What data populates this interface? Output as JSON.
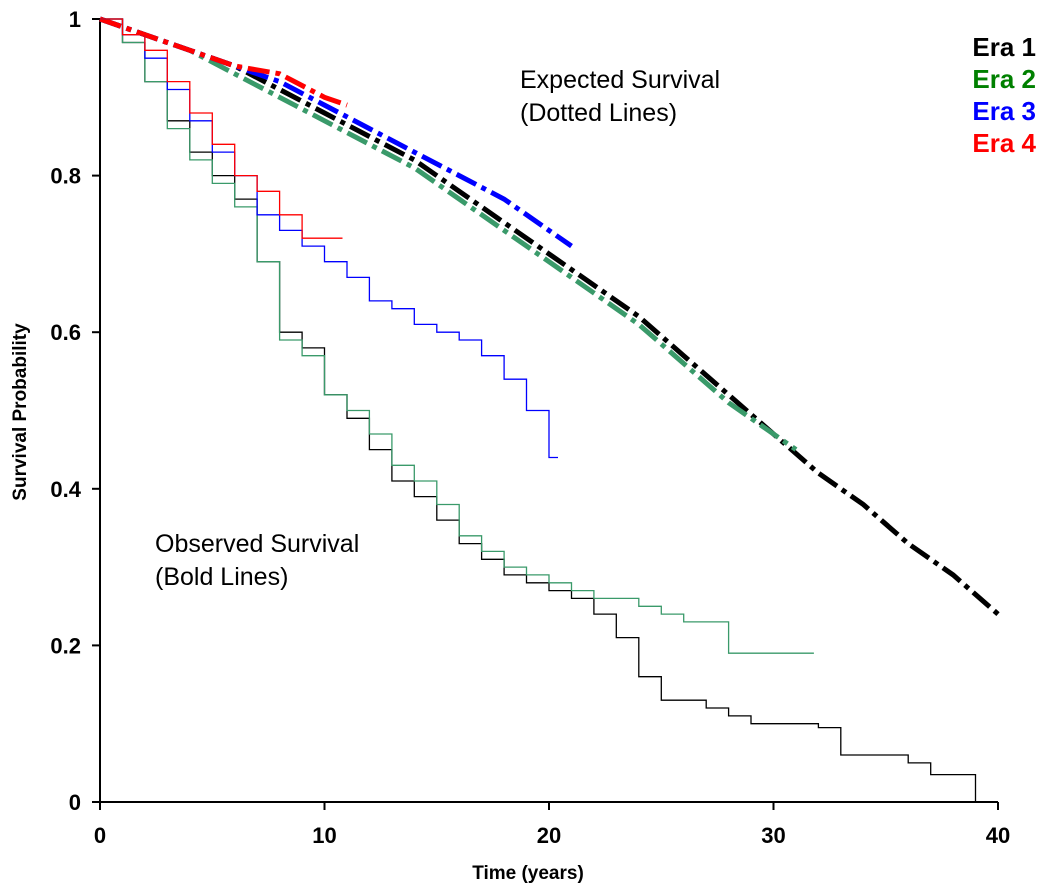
{
  "chart_data": {
    "type": "line",
    "title": "",
    "xlabel": "Time (years)",
    "ylabel": "Survival Probability",
    "xlim": [
      0,
      40
    ],
    "ylim": [
      0,
      1
    ],
    "x_ticks": [
      "0",
      "10",
      "20",
      "30",
      "40"
    ],
    "y_ticks": [
      "0",
      "0.2",
      "0.4",
      "0.6",
      "0.8",
      "1"
    ],
    "grid": false,
    "legend_position": "top-right",
    "annotations": [
      {
        "id": "expected",
        "lines": [
          "Expected Survival",
          "(Dotted Lines)"
        ]
      },
      {
        "id": "observed",
        "lines": [
          "Observed Survival",
          "(Bold Lines)"
        ]
      }
    ],
    "series": [
      {
        "name": "Era 1",
        "color": "#000000",
        "observed": [
          [
            0,
            1
          ],
          [
            1,
            0.97
          ],
          [
            2,
            0.92
          ],
          [
            3,
            0.87
          ],
          [
            4,
            0.83
          ],
          [
            5,
            0.8
          ],
          [
            6,
            0.77
          ],
          [
            7,
            0.69
          ],
          [
            8,
            0.6
          ],
          [
            9,
            0.58
          ],
          [
            10,
            0.52
          ],
          [
            11,
            0.49
          ],
          [
            12,
            0.45
          ],
          [
            13,
            0.41
          ],
          [
            14,
            0.39
          ],
          [
            15,
            0.36
          ],
          [
            16,
            0.33
          ],
          [
            17,
            0.31
          ],
          [
            18,
            0.29
          ],
          [
            19,
            0.28
          ],
          [
            20,
            0.27
          ],
          [
            21,
            0.26
          ],
          [
            22,
            0.24
          ],
          [
            23,
            0.21
          ],
          [
            24,
            0.16
          ],
          [
            25,
            0.13
          ],
          [
            26,
            0.13
          ],
          [
            27,
            0.12
          ],
          [
            28,
            0.11
          ],
          [
            29,
            0.1
          ],
          [
            30,
            0.1
          ],
          [
            31,
            0.1
          ],
          [
            32,
            0.095
          ],
          [
            33,
            0.06
          ],
          [
            34,
            0.06
          ],
          [
            35,
            0.06
          ],
          [
            36,
            0.05
          ],
          [
            37,
            0.035
          ],
          [
            38,
            0.035
          ],
          [
            39,
            0
          ]
        ],
        "expected": [
          [
            0,
            1
          ],
          [
            2,
            0.98
          ],
          [
            4,
            0.96
          ],
          [
            6,
            0.94
          ],
          [
            8,
            0.91
          ],
          [
            10,
            0.88
          ],
          [
            12,
            0.85
          ],
          [
            14,
            0.82
          ],
          [
            16,
            0.78
          ],
          [
            18,
            0.74
          ],
          [
            20,
            0.7
          ],
          [
            22,
            0.66
          ],
          [
            24,
            0.62
          ],
          [
            26,
            0.57
          ],
          [
            28,
            0.52
          ],
          [
            30,
            0.47
          ],
          [
            32,
            0.42
          ],
          [
            34,
            0.38
          ],
          [
            36,
            0.33
          ],
          [
            38,
            0.29
          ],
          [
            40,
            0.24
          ]
        ]
      },
      {
        "name": "Era 2",
        "color": "#008000",
        "line_color": "#3a9a6a",
        "observed": [
          [
            0,
            1
          ],
          [
            1,
            0.97
          ],
          [
            2,
            0.92
          ],
          [
            3,
            0.86
          ],
          [
            4,
            0.82
          ],
          [
            5,
            0.79
          ],
          [
            6,
            0.76
          ],
          [
            7,
            0.69
          ],
          [
            8,
            0.59
          ],
          [
            9,
            0.57
          ],
          [
            10,
            0.52
          ],
          [
            11,
            0.5
          ],
          [
            12,
            0.47
          ],
          [
            13,
            0.43
          ],
          [
            14,
            0.41
          ],
          [
            15,
            0.38
          ],
          [
            16,
            0.34
          ],
          [
            17,
            0.32
          ],
          [
            18,
            0.3
          ],
          [
            19,
            0.29
          ],
          [
            20,
            0.28
          ],
          [
            21,
            0.27
          ],
          [
            22,
            0.26
          ],
          [
            23,
            0.26
          ],
          [
            24,
            0.25
          ],
          [
            25,
            0.24
          ],
          [
            26,
            0.23
          ],
          [
            27,
            0.23
          ],
          [
            28,
            0.19
          ],
          [
            29,
            0.19
          ],
          [
            30,
            0.19
          ],
          [
            31,
            0.19
          ],
          [
            31.8,
            0.19
          ]
        ],
        "expected": [
          [
            0,
            1
          ],
          [
            2,
            0.98
          ],
          [
            4,
            0.96
          ],
          [
            6,
            0.93
          ],
          [
            8,
            0.9
          ],
          [
            10,
            0.87
          ],
          [
            12,
            0.84
          ],
          [
            14,
            0.81
          ],
          [
            16,
            0.77
          ],
          [
            18,
            0.73
          ],
          [
            20,
            0.69
          ],
          [
            22,
            0.65
          ],
          [
            24,
            0.61
          ],
          [
            26,
            0.56
          ],
          [
            28,
            0.51
          ],
          [
            30,
            0.47
          ],
          [
            31,
            0.45
          ]
        ]
      },
      {
        "name": "Era 3",
        "color": "#0000ff",
        "observed": [
          [
            0,
            1
          ],
          [
            1,
            0.98
          ],
          [
            2,
            0.95
          ],
          [
            3,
            0.91
          ],
          [
            4,
            0.87
          ],
          [
            5,
            0.83
          ],
          [
            6,
            0.8
          ],
          [
            7,
            0.75
          ],
          [
            8,
            0.73
          ],
          [
            9,
            0.71
          ],
          [
            10,
            0.69
          ],
          [
            11,
            0.67
          ],
          [
            12,
            0.64
          ],
          [
            13,
            0.63
          ],
          [
            14,
            0.61
          ],
          [
            15,
            0.6
          ],
          [
            16,
            0.59
          ],
          [
            17,
            0.57
          ],
          [
            18,
            0.54
          ],
          [
            19,
            0.5
          ],
          [
            20,
            0.44
          ],
          [
            20.4,
            0.44
          ]
        ],
        "expected": [
          [
            0,
            1
          ],
          [
            2,
            0.98
          ],
          [
            4,
            0.96
          ],
          [
            6,
            0.94
          ],
          [
            8,
            0.92
          ],
          [
            10,
            0.89
          ],
          [
            12,
            0.86
          ],
          [
            14,
            0.83
          ],
          [
            16,
            0.8
          ],
          [
            18,
            0.77
          ],
          [
            20,
            0.73
          ],
          [
            21,
            0.71
          ]
        ]
      },
      {
        "name": "Era 4",
        "color": "#ff0000",
        "observed": [
          [
            0,
            1
          ],
          [
            1,
            0.98
          ],
          [
            2,
            0.96
          ],
          [
            3,
            0.92
          ],
          [
            4,
            0.88
          ],
          [
            5,
            0.84
          ],
          [
            6,
            0.8
          ],
          [
            7,
            0.78
          ],
          [
            8,
            0.75
          ],
          [
            9,
            0.72
          ],
          [
            10,
            0.72
          ],
          [
            10.8,
            0.72
          ]
        ],
        "expected": [
          [
            0,
            1
          ],
          [
            2,
            0.98
          ],
          [
            4,
            0.96
          ],
          [
            6,
            0.94
          ],
          [
            8,
            0.93
          ],
          [
            10,
            0.9
          ],
          [
            11,
            0.89
          ]
        ]
      }
    ]
  }
}
